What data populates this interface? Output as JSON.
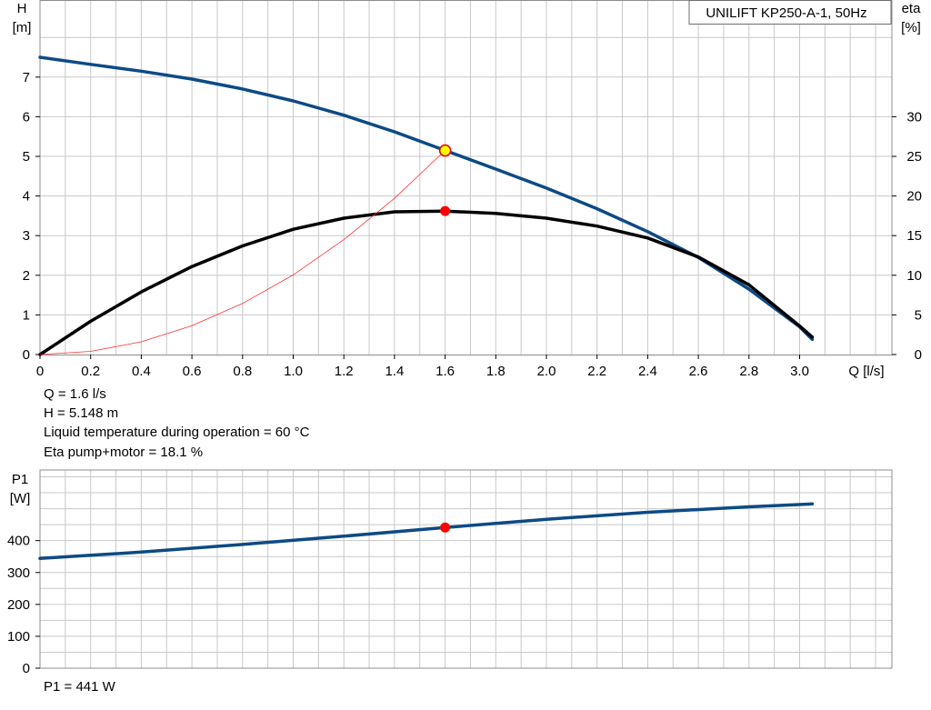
{
  "chart_data": [
    {
      "type": "line",
      "title": "UNILIFT KP250-A-1, 50Hz",
      "xlabel": "Q [l/s]",
      "ylabel_left": [
        "H",
        "[m]"
      ],
      "ylabel_right": [
        "eta",
        "[%]"
      ],
      "xlim": [
        0,
        3.2
      ],
      "ylim_left": [
        0,
        8
      ],
      "ylim_right": [
        0,
        40
      ],
      "x_ticks": [
        "0",
        "0.2",
        "0.4",
        "0.6",
        "0.8",
        "1.0",
        "1.2",
        "1.4",
        "1.6",
        "1.8",
        "2.0",
        "2.2",
        "2.4",
        "2.6",
        "2.8",
        "3.0"
      ],
      "y_ticks_left": [
        "0",
        "1",
        "2",
        "3",
        "4",
        "5",
        "6",
        "7"
      ],
      "y_ticks_right": [
        "0",
        "5",
        "10",
        "15",
        "20",
        "25",
        "30"
      ],
      "grid": true,
      "series": [
        {
          "axis": "left",
          "color": "#0d4a85",
          "x": [
            0,
            0.2,
            0.4,
            0.6,
            0.8,
            1.0,
            1.2,
            1.4,
            1.6,
            1.8,
            2.0,
            2.2,
            2.4,
            2.6,
            2.8,
            3.0,
            3.05
          ],
          "values": [
            7.5,
            7.32,
            7.15,
            6.95,
            6.7,
            6.4,
            6.04,
            5.62,
            5.15,
            4.68,
            4.2,
            3.68,
            3.1,
            2.45,
            1.65,
            0.7,
            0.38
          ]
        },
        {
          "axis": "right",
          "color": "#000000",
          "x": [
            0,
            0.2,
            0.4,
            0.6,
            0.8,
            1.0,
            1.2,
            1.4,
            1.6,
            1.8,
            2.0,
            2.2,
            2.4,
            2.6,
            2.8,
            3.0,
            3.05
          ],
          "values": [
            0,
            4.2,
            7.9,
            11.1,
            13.7,
            15.8,
            17.2,
            18.0,
            18.1,
            17.8,
            17.2,
            16.2,
            14.7,
            12.3,
            8.8,
            3.6,
            2.2
          ]
        },
        {
          "axis": "left",
          "color": "#ff3030",
          "thin": true,
          "x": [
            0,
            0.2,
            0.4,
            0.6,
            0.8,
            1.0,
            1.2,
            1.4,
            1.6
          ],
          "values": [
            0,
            0.08,
            0.32,
            0.73,
            1.29,
            2.01,
            2.9,
            3.94,
            5.148
          ]
        }
      ],
      "markers": [
        {
          "axis": "left",
          "x": 1.6,
          "y": 5.148,
          "fill": "#ffff00",
          "stroke": "#e00000"
        },
        {
          "axis": "right",
          "x": 1.6,
          "y": 18.1,
          "fill": "#ff0000",
          "stroke": "#ff0000"
        }
      ]
    },
    {
      "type": "line",
      "xlabel": "",
      "ylabel_left": [
        "P1",
        "[W]"
      ],
      "xlim": [
        0,
        3.2
      ],
      "ylim": [
        0,
        500
      ],
      "y_ticks_left": [
        "0",
        "100",
        "200",
        "300",
        "400"
      ],
      "grid": true,
      "series": [
        {
          "axis": "left",
          "color": "#0d4a85",
          "x": [
            0,
            0.4,
            0.8,
            1.2,
            1.6,
            2.0,
            2.4,
            2.8,
            3.05
          ],
          "values": [
            344,
            364,
            388,
            414,
            441,
            467,
            489,
            506,
            515
          ]
        }
      ],
      "markers": [
        {
          "axis": "left",
          "x": 1.6,
          "y": 441,
          "fill": "#ff0000",
          "stroke": "#ff0000"
        }
      ]
    }
  ],
  "info": {
    "q": "Q = 1.6 l/s",
    "h": "H = 5.148 m",
    "temp": "Liquid temperature during operation = 60 °C",
    "eta": "Eta pump+motor = 18.1 %",
    "p1": "P1 = 441 W"
  }
}
